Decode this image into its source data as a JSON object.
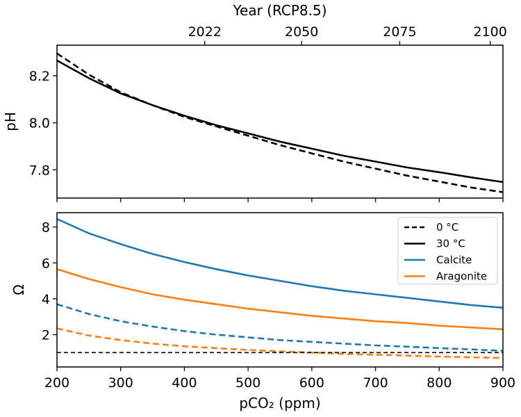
{
  "chart_data": [
    {
      "type": "line",
      "ylabel": "pH",
      "xlim": [
        200,
        900
      ],
      "ylim": [
        7.68,
        8.33
      ],
      "yticks": [
        7.8,
        8.0,
        8.2
      ],
      "ytick_labels": [
        "7.8",
        "8.0",
        "8.2"
      ],
      "top_axis": {
        "label": "Year (RCP8.5)",
        "tick_x": [
          432,
          584,
          738,
          880
        ],
        "tick_labels": [
          "2022",
          "2050",
          "2075",
          "2100"
        ]
      },
      "series": [
        {
          "style": "dashed",
          "color": "#000000",
          "x": [
            200,
            250,
            300,
            350,
            400,
            450,
            500,
            550,
            600,
            650,
            700,
            750,
            800,
            850,
            900
          ],
          "y": [
            8.295,
            8.205,
            8.13,
            8.075,
            8.025,
            7.985,
            7.945,
            7.905,
            7.87,
            7.835,
            7.805,
            7.775,
            7.75,
            7.725,
            7.705
          ]
        },
        {
          "style": "solid",
          "color": "#000000",
          "x": [
            200,
            250,
            300,
            350,
            400,
            450,
            500,
            550,
            600,
            650,
            700,
            750,
            800,
            850,
            900
          ],
          "y": [
            8.265,
            8.19,
            8.125,
            8.075,
            8.03,
            7.99,
            7.955,
            7.92,
            7.89,
            7.86,
            7.835,
            7.81,
            7.79,
            7.768,
            7.748
          ]
        }
      ]
    },
    {
      "type": "line",
      "xlabel": "pCO₂ (ppm)",
      "ylabel": "Ω",
      "xlim": [
        200,
        900
      ],
      "ylim": [
        0.2,
        8.8
      ],
      "xticks": [
        200,
        300,
        400,
        500,
        600,
        700,
        800,
        900
      ],
      "xtick_labels": [
        "200",
        "300",
        "400",
        "500",
        "600",
        "700",
        "800",
        "900"
      ],
      "yticks": [
        2,
        4,
        6,
        8
      ],
      "ytick_labels": [
        "2",
        "4",
        "6",
        "8"
      ],
      "legend": {
        "placement": "top-right",
        "entries": [
          {
            "label": "0 °C",
            "style": "dashed",
            "color": "#000000"
          },
          {
            "label": "30 °C",
            "style": "solid",
            "color": "#000000"
          },
          {
            "label": "Calcite",
            "style": "solid",
            "color": "#1f77b4"
          },
          {
            "label": "Aragonite",
            "style": "solid",
            "color": "#ff7f0e"
          }
        ]
      },
      "series": [
        {
          "style": "solid",
          "color": "#1f77b4",
          "x": [
            200,
            250,
            300,
            350,
            400,
            450,
            500,
            550,
            600,
            650,
            700,
            750,
            800,
            850,
            900
          ],
          "y": [
            8.45,
            7.65,
            7.05,
            6.5,
            6.05,
            5.65,
            5.3,
            5.0,
            4.7,
            4.45,
            4.25,
            4.05,
            3.85,
            3.65,
            3.5
          ]
        },
        {
          "style": "solid",
          "color": "#ff7f0e",
          "x": [
            200,
            250,
            300,
            350,
            400,
            450,
            500,
            550,
            600,
            650,
            700,
            750,
            800,
            850,
            900
          ],
          "y": [
            5.65,
            5.1,
            4.65,
            4.25,
            3.95,
            3.7,
            3.45,
            3.25,
            3.05,
            2.9,
            2.75,
            2.65,
            2.5,
            2.4,
            2.3
          ]
        },
        {
          "style": "dashed",
          "color": "#1f77b4",
          "x": [
            200,
            250,
            300,
            350,
            400,
            450,
            500,
            550,
            600,
            650,
            700,
            750,
            800,
            850,
            900
          ],
          "y": [
            3.7,
            3.15,
            2.75,
            2.45,
            2.2,
            2.0,
            1.85,
            1.7,
            1.6,
            1.5,
            1.4,
            1.33,
            1.25,
            1.18,
            1.1
          ]
        },
        {
          "style": "dashed",
          "color": "#ff7f0e",
          "x": [
            200,
            250,
            300,
            350,
            400,
            450,
            500,
            550,
            600,
            650,
            700,
            750,
            800,
            850,
            900
          ],
          "y": [
            2.35,
            1.95,
            1.7,
            1.5,
            1.35,
            1.25,
            1.15,
            1.07,
            1.0,
            0.93,
            0.88,
            0.83,
            0.78,
            0.74,
            0.7
          ]
        },
        {
          "style": "dashed-thin",
          "color": "#000000",
          "x": [
            200,
            900
          ],
          "y": [
            1.0,
            1.0
          ]
        }
      ]
    }
  ]
}
